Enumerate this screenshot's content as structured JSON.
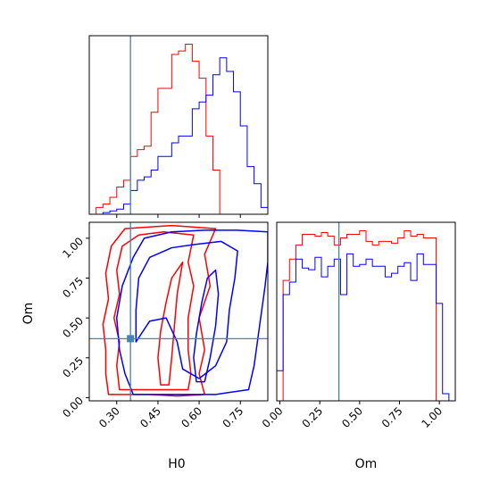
{
  "chart_data": {
    "type": "corner",
    "parameters": [
      "H0",
      "Om"
    ],
    "truth": {
      "H0": 0.35,
      "Om": 0.37
    },
    "colors": {
      "series_a": "#ff0000",
      "series_b": "#0000ff",
      "truth": "#4682b4"
    },
    "axes": {
      "H0": {
        "label": "H0",
        "range": [
          0.2,
          0.85
        ],
        "ticks": [
          0.3,
          0.45,
          0.6,
          0.75
        ],
        "tick_labels": [
          "0.30",
          "0.45",
          "0.60",
          "0.75"
        ]
      },
      "Om": {
        "label": "Om",
        "range": [
          -0.02,
          1.1
        ],
        "ticks": [
          0.0,
          0.25,
          0.5,
          0.75,
          1.0
        ],
        "tick_labels": [
          "0.00",
          "0.25",
          "0.50",
          "0.75",
          "1.00"
        ]
      }
    },
    "hist_H0": {
      "edges": [
        0.2,
        0.225,
        0.25,
        0.275,
        0.3,
        0.325,
        0.35,
        0.375,
        0.4,
        0.425,
        0.45,
        0.475,
        0.5,
        0.525,
        0.55,
        0.575,
        0.6,
        0.625,
        0.65,
        0.675,
        0.7,
        0.725,
        0.75,
        0.775,
        0.8,
        0.825,
        0.85
      ],
      "series_a": [
        0.0,
        2,
        3,
        5,
        8,
        10,
        17,
        19,
        20,
        30,
        37,
        37,
        47,
        48,
        50,
        45,
        40,
        23,
        13,
        0,
        0,
        0,
        0,
        0,
        0,
        0
      ],
      "series_b": [
        0.0,
        0,
        0.5,
        1,
        1.5,
        3,
        7,
        10,
        11,
        13,
        17,
        17,
        21,
        23,
        23,
        31,
        33,
        35,
        41,
        46,
        42,
        36,
        26,
        14,
        9,
        2
      ]
    },
    "hist_Om": {
      "edges": [
        -0.02,
        0.02,
        0.06,
        0.1,
        0.14,
        0.18,
        0.22,
        0.26,
        0.3,
        0.34,
        0.38,
        0.42,
        0.46,
        0.5,
        0.54,
        0.58,
        0.62,
        0.66,
        0.7,
        0.74,
        0.78,
        0.82,
        0.86,
        0.9,
        0.94,
        0.98,
        1.02,
        1.06,
        1.1
      ],
      "series_a": [
        0,
        68,
        80,
        88,
        94,
        94,
        93,
        95,
        93,
        88,
        92,
        94,
        94,
        96,
        90,
        88,
        90,
        90,
        89,
        92,
        96,
        93,
        94,
        92,
        92,
        0,
        0,
        0
      ],
      "series_b": [
        17,
        60,
        67,
        80,
        75,
        74,
        81,
        70,
        76,
        80,
        60,
        83,
        76,
        77,
        80,
        76,
        76,
        70,
        72,
        76,
        78,
        68,
        83,
        77,
        77,
        55,
        4,
        0
      ]
    },
    "contours": {
      "series_a": [
        [
          [
            0.27,
            0.02
          ],
          [
            0.26,
            0.15
          ],
          [
            0.26,
            0.3
          ],
          [
            0.25,
            0.46
          ],
          [
            0.27,
            0.62
          ],
          [
            0.26,
            0.78
          ],
          [
            0.28,
            0.95
          ],
          [
            0.33,
            1.06
          ],
          [
            0.5,
            1.08
          ],
          [
            0.66,
            1.06
          ],
          [
            0.62,
            0.9
          ],
          [
            0.64,
            0.7
          ],
          [
            0.6,
            0.5
          ],
          [
            0.62,
            0.3
          ],
          [
            0.6,
            0.15
          ],
          [
            0.62,
            0.02
          ],
          [
            0.52,
            0.01
          ],
          [
            0.42,
            0.02
          ],
          [
            0.35,
            0.02
          ]
        ],
        [
          [
            0.31,
            0.05
          ],
          [
            0.3,
            0.2
          ],
          [
            0.31,
            0.35
          ],
          [
            0.29,
            0.5
          ],
          [
            0.31,
            0.65
          ],
          [
            0.3,
            0.8
          ],
          [
            0.32,
            0.95
          ],
          [
            0.38,
            1.02
          ],
          [
            0.47,
            1.04
          ],
          [
            0.58,
            1.02
          ],
          [
            0.56,
            0.85
          ],
          [
            0.58,
            0.7
          ],
          [
            0.56,
            0.5
          ],
          [
            0.56,
            0.3
          ],
          [
            0.57,
            0.15
          ],
          [
            0.56,
            0.05
          ]
        ],
        [
          [
            0.46,
            0.08
          ],
          [
            0.45,
            0.25
          ],
          [
            0.46,
            0.42
          ],
          [
            0.48,
            0.6
          ],
          [
            0.5,
            0.75
          ],
          [
            0.54,
            0.85
          ],
          [
            0.52,
            0.65
          ],
          [
            0.51,
            0.45
          ],
          [
            0.5,
            0.25
          ],
          [
            0.49,
            0.08
          ]
        ]
      ],
      "series_b": [
        [
          [
            0.36,
            0.02
          ],
          [
            0.33,
            0.15
          ],
          [
            0.31,
            0.3
          ],
          [
            0.3,
            0.5
          ],
          [
            0.32,
            0.7
          ],
          [
            0.36,
            0.88
          ],
          [
            0.4,
            1.0
          ],
          [
            0.5,
            1.04
          ],
          [
            0.62,
            1.05
          ],
          [
            0.74,
            1.05
          ],
          [
            0.85,
            1.04
          ],
          [
            0.85,
            0.85
          ],
          [
            0.84,
            0.7
          ],
          [
            0.82,
            0.45
          ],
          [
            0.8,
            0.2
          ],
          [
            0.78,
            0.05
          ],
          [
            0.66,
            0.02
          ],
          [
            0.52,
            0.02
          ]
        ],
        [
          [
            0.37,
            0.35
          ],
          [
            0.37,
            0.55
          ],
          [
            0.38,
            0.75
          ],
          [
            0.42,
            0.88
          ],
          [
            0.5,
            0.94
          ],
          [
            0.58,
            0.96
          ],
          [
            0.68,
            0.98
          ],
          [
            0.74,
            0.92
          ],
          [
            0.73,
            0.75
          ],
          [
            0.71,
            0.55
          ],
          [
            0.7,
            0.35
          ],
          [
            0.66,
            0.2
          ],
          [
            0.6,
            0.12
          ],
          [
            0.54,
            0.18
          ],
          [
            0.52,
            0.35
          ],
          [
            0.48,
            0.5
          ],
          [
            0.42,
            0.48
          ]
        ],
        [
          [
            0.59,
            0.1
          ],
          [
            0.58,
            0.25
          ],
          [
            0.59,
            0.4
          ],
          [
            0.61,
            0.6
          ],
          [
            0.63,
            0.75
          ],
          [
            0.66,
            0.8
          ],
          [
            0.67,
            0.65
          ],
          [
            0.66,
            0.45
          ],
          [
            0.64,
            0.25
          ],
          [
            0.62,
            0.1
          ]
        ]
      ]
    }
  }
}
